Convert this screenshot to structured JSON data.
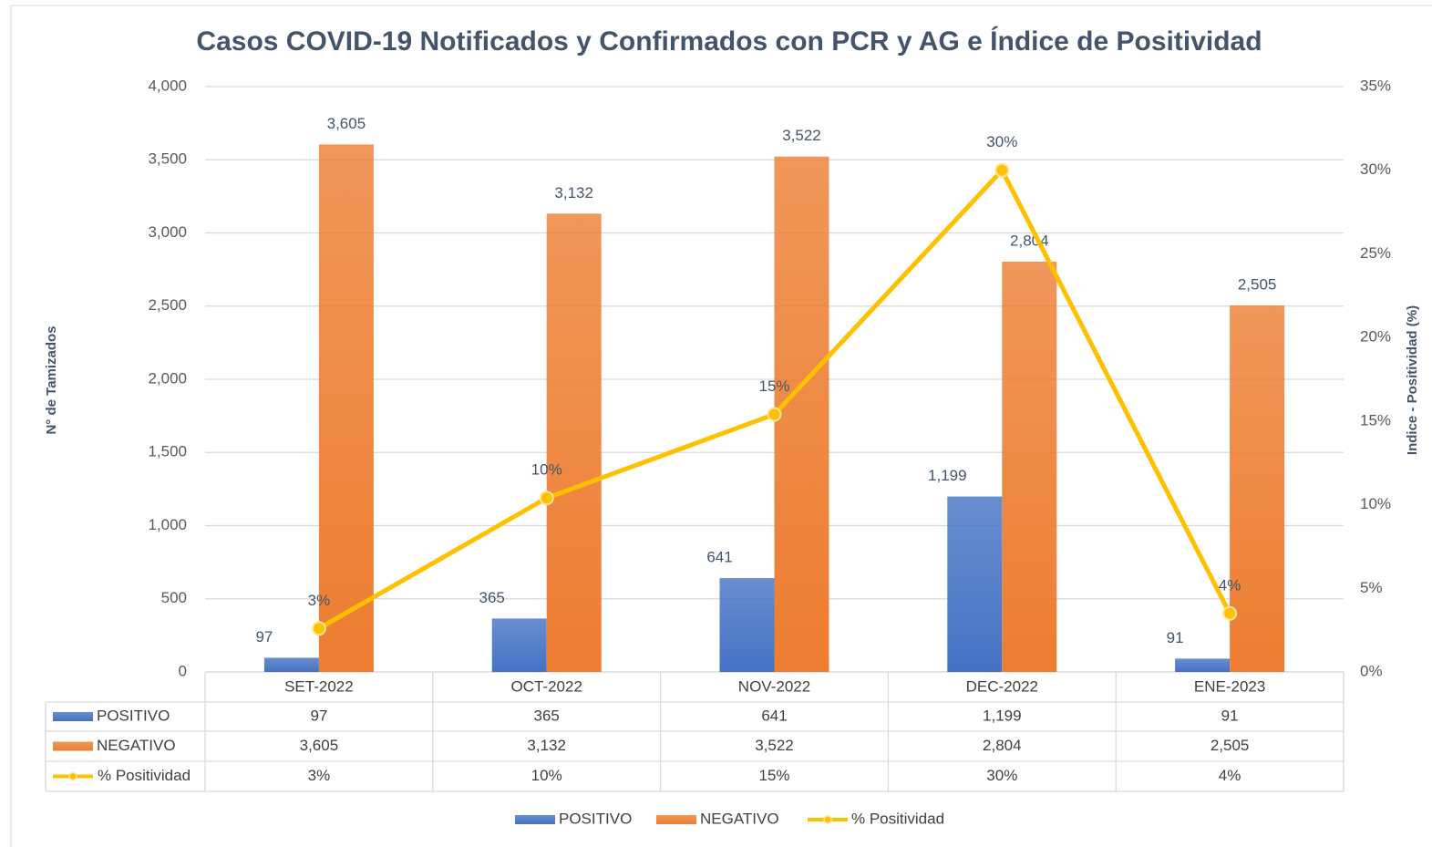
{
  "chart_data": {
    "type": "bar-line",
    "title": "Casos COVID-19 Notificados y Confirmados con PCR y AG e Índice de Positividad",
    "y_label": "N° de Tamizados",
    "y2_label": "Indice - Positividad (%)",
    "categories": [
      "SET-2022",
      "OCT-2022",
      "NOV-2022",
      "DEC-2022",
      "ENE-2023"
    ],
    "series": [
      {
        "name": "POSITIVO",
        "type": "bar",
        "color": "#4472c4",
        "values": [
          97,
          365,
          641,
          1199,
          91
        ],
        "value_labels": [
          "97",
          "365",
          "641",
          "1,199",
          "91"
        ]
      },
      {
        "name": "NEGATIVO",
        "type": "bar",
        "color": "#ed7d31",
        "values": [
          3605,
          3132,
          3522,
          2804,
          2505
        ],
        "value_labels": [
          "3,605",
          "3,132",
          "3,522",
          "2,804",
          "2,505"
        ]
      },
      {
        "name": "% Positividad",
        "type": "line",
        "axis": "y2",
        "color": "#ffc000",
        "values": [
          2.6,
          10.4,
          15.4,
          30.0,
          3.5
        ],
        "value_labels": [
          "3%",
          "10%",
          "15%",
          "30%",
          "4%"
        ]
      }
    ],
    "ylim": [
      0,
      4000
    ],
    "yticks": [
      0,
      500,
      {
        "value": 1000,
        "label": "1,000"
      },
      {
        "value": 1500,
        "label": "1,500"
      },
      {
        "value": 2000,
        "label": "2,000"
      },
      {
        "value": 2500,
        "label": "2,500"
      },
      {
        "value": 3000,
        "label": "3,000"
      },
      {
        "value": 3500,
        "label": "3,500"
      },
      {
        "value": 4000,
        "label": "4,000"
      }
    ],
    "y2lim": [
      0,
      35
    ],
    "y2ticks": [
      {
        "value": 0,
        "label": "0%"
      },
      {
        "value": 5,
        "label": "5%"
      },
      {
        "value": 10,
        "label": "10%"
      },
      {
        "value": 15,
        "label": "15%"
      },
      {
        "value": 20,
        "label": "20%"
      },
      {
        "value": 25,
        "label": "25%"
      },
      {
        "value": 30,
        "label": "30%"
      },
      {
        "value": 35,
        "label": "35%"
      }
    ],
    "grid": true,
    "legend": "bottom"
  }
}
